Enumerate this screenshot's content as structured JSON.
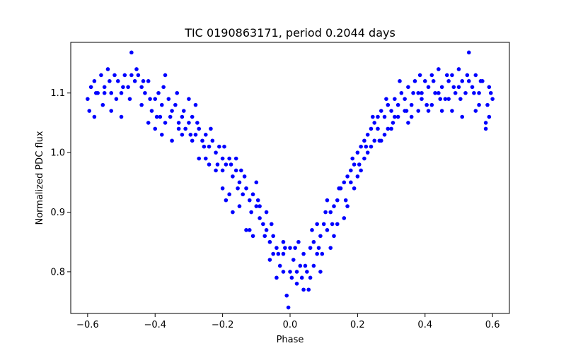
{
  "chart_data": {
    "type": "scatter",
    "title": "TIC 0190863171, period 0.2044 days",
    "xlabel": "Phase",
    "ylabel": "Normalized PDC flux",
    "xlim": [
      -0.65,
      0.65
    ],
    "ylim": [
      0.73,
      1.185
    ],
    "xticks": [
      -0.6,
      -0.4,
      -0.2,
      0.0,
      0.2,
      0.4,
      0.6
    ],
    "xtick_labels": [
      "−0.6",
      "−0.4",
      "−0.2",
      "0.0",
      "0.2",
      "0.4",
      "0.6"
    ],
    "yticks": [
      0.8,
      0.9,
      1.0,
      1.1
    ],
    "ytick_labels": [
      "0.8",
      "0.9",
      "1.0",
      "1.1"
    ],
    "grid": false,
    "legend": "none",
    "marker_color": "#0000ff",
    "series": [
      {
        "points": [
          [
            -0.6,
            1.09
          ],
          [
            -0.59,
            1.11
          ],
          [
            -0.58,
            1.12
          ],
          [
            -0.57,
            1.1
          ],
          [
            -0.56,
            1.13
          ],
          [
            -0.55,
            1.11
          ],
          [
            -0.54,
            1.14
          ],
          [
            -0.53,
            1.1
          ],
          [
            -0.52,
            1.13
          ],
          [
            -0.51,
            1.12
          ],
          [
            -0.5,
            1.1
          ],
          [
            -0.49,
            1.13
          ],
          [
            -0.48,
            1.11
          ],
          [
            -0.47,
            1.168
          ],
          [
            -0.46,
            1.12
          ],
          [
            -0.45,
            1.13
          ],
          [
            -0.44,
            1.11
          ],
          [
            -0.43,
            1.1
          ],
          [
            -0.42,
            1.12
          ],
          [
            -0.41,
            1.07
          ],
          [
            -0.4,
            1.09
          ],
          [
            -0.39,
            1.1
          ],
          [
            -0.38,
            1.08
          ],
          [
            -0.37,
            1.13
          ],
          [
            -0.36,
            1.09
          ],
          [
            -0.35,
            1.07
          ],
          [
            -0.34,
            1.08
          ],
          [
            -0.33,
            1.05
          ],
          [
            -0.32,
            1.06
          ],
          [
            -0.31,
            1.04
          ],
          [
            -0.3,
            1.05
          ],
          [
            -0.29,
            1.06
          ],
          [
            -0.28,
            1.03
          ],
          [
            -0.27,
            1.04
          ],
          [
            -0.26,
            1.02
          ],
          [
            -0.25,
            1.03
          ],
          [
            -0.24,
            1.01
          ],
          [
            -0.23,
            1.02
          ],
          [
            -0.22,
            1.0
          ],
          [
            -0.21,
            1.01
          ],
          [
            -0.2,
            0.99
          ],
          [
            -0.19,
            0.98
          ],
          [
            -0.18,
            0.99
          ],
          [
            -0.17,
            0.96
          ],
          [
            -0.16,
            0.97
          ],
          [
            -0.15,
            0.95
          ],
          [
            -0.14,
            0.93
          ],
          [
            -0.13,
            0.94
          ],
          [
            -0.12,
            0.92
          ],
          [
            -0.11,
            0.93
          ],
          [
            -0.1,
            0.91
          ],
          [
            -0.09,
            0.89
          ],
          [
            -0.08,
            0.88
          ],
          [
            -0.07,
            0.87
          ],
          [
            -0.06,
            0.85
          ],
          [
            -0.05,
            0.86
          ],
          [
            -0.04,
            0.84
          ],
          [
            -0.03,
            0.81
          ],
          [
            -0.02,
            0.83
          ],
          [
            -0.01,
            0.76
          ],
          [
            0.0,
            0.8
          ],
          [
            0.01,
            0.82
          ],
          [
            0.02,
            0.78
          ],
          [
            0.03,
            0.81
          ],
          [
            0.04,
            0.83
          ],
          [
            0.05,
            0.8
          ],
          [
            0.06,
            0.84
          ],
          [
            0.07,
            0.85
          ],
          [
            0.08,
            0.83
          ],
          [
            0.09,
            0.86
          ],
          [
            0.1,
            0.88
          ],
          [
            0.11,
            0.87
          ],
          [
            0.12,
            0.9
          ],
          [
            0.13,
            0.91
          ],
          [
            0.14,
            0.92
          ],
          [
            0.15,
            0.94
          ],
          [
            0.16,
            0.95
          ],
          [
            0.17,
            0.96
          ],
          [
            0.18,
            0.97
          ],
          [
            0.19,
            0.98
          ],
          [
            0.2,
            1.0
          ],
          [
            0.21,
            1.01
          ],
          [
            0.22,
            1.02
          ],
          [
            0.23,
            1.03
          ],
          [
            0.24,
            1.04
          ],
          [
            0.25,
            1.05
          ],
          [
            0.26,
            1.04
          ],
          [
            0.27,
            1.07
          ],
          [
            0.28,
            1.06
          ],
          [
            0.29,
            1.08
          ],
          [
            0.3,
            1.07
          ],
          [
            0.31,
            1.09
          ],
          [
            0.32,
            1.08
          ],
          [
            0.33,
            1.1
          ],
          [
            0.34,
            1.09
          ],
          [
            0.35,
            1.11
          ],
          [
            0.36,
            1.08
          ],
          [
            0.37,
            1.12
          ],
          [
            0.38,
            1.1
          ],
          [
            0.39,
            1.09
          ],
          [
            0.4,
            1.12
          ],
          [
            0.41,
            1.11
          ],
          [
            0.42,
            1.13
          ],
          [
            0.43,
            1.1
          ],
          [
            0.44,
            1.14
          ],
          [
            0.45,
            1.11
          ],
          [
            0.46,
            1.09
          ],
          [
            0.47,
            1.12
          ],
          [
            0.48,
            1.13
          ],
          [
            0.49,
            1.1
          ],
          [
            0.5,
            1.14
          ],
          [
            0.51,
            1.12
          ],
          [
            0.52,
            1.1
          ],
          [
            0.53,
            1.168
          ],
          [
            0.54,
            1.11
          ],
          [
            0.55,
            1.13
          ],
          [
            0.56,
            1.1
          ],
          [
            0.57,
            1.12
          ],
          [
            0.58,
            1.05
          ],
          [
            0.59,
            1.11
          ],
          [
            0.6,
            1.09
          ],
          [
            -0.595,
            1.07
          ],
          [
            -0.575,
            1.1
          ],
          [
            -0.555,
            1.08
          ],
          [
            -0.535,
            1.12
          ],
          [
            -0.515,
            1.09
          ],
          [
            -0.495,
            1.11
          ],
          [
            -0.475,
            1.09
          ],
          [
            -0.455,
            1.14
          ],
          [
            -0.435,
            1.12
          ],
          [
            -0.415,
            1.09
          ],
          [
            -0.395,
            1.06
          ],
          [
            -0.375,
            1.11
          ],
          [
            -0.355,
            1.06
          ],
          [
            -0.335,
            1.1
          ],
          [
            -0.315,
            1.07
          ],
          [
            -0.295,
            1.03
          ],
          [
            -0.275,
            1.05
          ],
          [
            -0.255,
            1.01
          ],
          [
            -0.235,
            1.04
          ],
          [
            -0.215,
            0.98
          ],
          [
            -0.195,
            1.01
          ],
          [
            -0.175,
            0.98
          ],
          [
            -0.155,
            0.94
          ],
          [
            -0.135,
            0.96
          ],
          [
            -0.115,
            0.9
          ],
          [
            -0.095,
            0.92
          ],
          [
            -0.075,
            0.86
          ],
          [
            -0.055,
            0.88
          ],
          [
            -0.035,
            0.83
          ],
          [
            -0.015,
            0.84
          ],
          [
            0.005,
            0.79
          ],
          [
            0.025,
            0.85
          ],
          [
            0.045,
            0.81
          ],
          [
            0.065,
            0.87
          ],
          [
            0.085,
            0.84
          ],
          [
            0.105,
            0.9
          ],
          [
            0.125,
            0.88
          ],
          [
            0.145,
            0.94
          ],
          [
            0.165,
            0.92
          ],
          [
            0.185,
            0.99
          ],
          [
            0.205,
            0.98
          ],
          [
            0.225,
            1.01
          ],
          [
            0.245,
            1.06
          ],
          [
            0.265,
            1.02
          ],
          [
            0.285,
            1.09
          ],
          [
            0.305,
            1.05
          ],
          [
            0.325,
            1.12
          ],
          [
            0.345,
            1.07
          ],
          [
            0.365,
            1.1
          ],
          [
            0.385,
            1.13
          ],
          [
            0.405,
            1.08
          ],
          [
            0.425,
            1.12
          ],
          [
            0.445,
            1.09
          ],
          [
            0.465,
            1.13
          ],
          [
            0.485,
            1.11
          ],
          [
            0.505,
            1.09
          ],
          [
            0.525,
            1.13
          ],
          [
            0.545,
            1.1
          ],
          [
            0.565,
            1.12
          ],
          [
            0.585,
            1.08
          ],
          [
            0.595,
            1.1
          ],
          [
            -0.4,
            1.04
          ],
          [
            -0.385,
            1.06
          ],
          [
            -0.37,
            1.05
          ],
          [
            -0.3,
            1.09
          ],
          [
            -0.28,
            1.08
          ],
          [
            -0.25,
            0.99
          ],
          [
            -0.2,
            0.97
          ],
          [
            -0.18,
            0.93
          ],
          [
            -0.16,
            0.99
          ],
          [
            -0.145,
            0.97
          ],
          [
            -0.12,
            0.87
          ],
          [
            -0.1,
            0.95
          ],
          [
            -0.09,
            0.91
          ],
          [
            -0.07,
            0.9
          ],
          [
            -0.05,
            0.83
          ],
          [
            -0.02,
            0.8
          ],
          [
            -0.005,
            0.74
          ],
          [
            0.015,
            0.84
          ],
          [
            0.035,
            0.79
          ],
          [
            0.055,
            0.77
          ],
          [
            0.07,
            0.81
          ],
          [
            0.08,
            0.88
          ],
          [
            0.095,
            0.83
          ],
          [
            0.11,
            0.92
          ],
          [
            0.13,
            0.86
          ],
          [
            0.16,
            0.89
          ],
          [
            0.18,
            0.95
          ],
          [
            0.2,
            0.96
          ],
          [
            0.22,
            0.99
          ],
          [
            0.24,
            1.01
          ],
          [
            0.26,
            1.06
          ],
          [
            0.28,
            1.03
          ],
          [
            0.3,
            1.04
          ],
          [
            0.32,
            1.06
          ],
          [
            0.35,
            1.05
          ],
          [
            0.38,
            1.07
          ],
          [
            0.42,
            1.08
          ],
          [
            0.45,
            1.07
          ],
          [
            0.48,
            1.07
          ],
          [
            0.51,
            1.06
          ],
          [
            0.55,
            1.07
          ],
          [
            0.58,
            1.04
          ],
          [
            -0.58,
            1.06
          ],
          [
            -0.55,
            1.1
          ],
          [
            -0.53,
            1.07
          ],
          [
            -0.5,
            1.06
          ],
          [
            -0.47,
            1.13
          ],
          [
            -0.44,
            1.08
          ],
          [
            -0.42,
            1.05
          ],
          [
            -0.38,
            1.03
          ],
          [
            -0.35,
            1.02
          ],
          [
            -0.33,
            1.04
          ],
          [
            -0.32,
            1.03
          ],
          [
            -0.29,
            1.02
          ],
          [
            -0.27,
            0.99
          ],
          [
            -0.24,
            0.98
          ],
          [
            -0.22,
            0.97
          ],
          [
            -0.2,
            0.94
          ],
          [
            -0.19,
            0.92
          ],
          [
            -0.17,
            0.9
          ],
          [
            -0.15,
            0.91
          ],
          [
            -0.13,
            0.87
          ],
          [
            -0.11,
            0.86
          ],
          [
            -0.06,
            0.82
          ],
          [
            -0.04,
            0.79
          ],
          [
            -0.02,
            0.85
          ],
          [
            0.0,
            0.84
          ],
          [
            0.02,
            0.8
          ],
          [
            0.04,
            0.77
          ],
          [
            0.06,
            0.79
          ],
          [
            0.09,
            0.8
          ],
          [
            0.12,
            0.84
          ],
          [
            0.14,
            0.88
          ],
          [
            0.17,
            0.91
          ],
          [
            0.19,
            0.94
          ],
          [
            0.21,
            0.97
          ],
          [
            0.23,
            1.0
          ],
          [
            0.25,
            1.02
          ],
          [
            0.27,
            1.02
          ],
          [
            0.29,
            1.04
          ],
          [
            0.31,
            1.06
          ],
          [
            0.34,
            1.07
          ],
          [
            0.36,
            1.06
          ],
          [
            0.39,
            1.1
          ],
          [
            0.41,
            1.07
          ],
          [
            0.44,
            1.1
          ],
          [
            0.47,
            1.09
          ],
          [
            0.5,
            1.11
          ],
          [
            0.53,
            1.12
          ],
          [
            0.56,
            1.08
          ],
          [
            0.59,
            1.06
          ]
        ]
      }
    ]
  }
}
